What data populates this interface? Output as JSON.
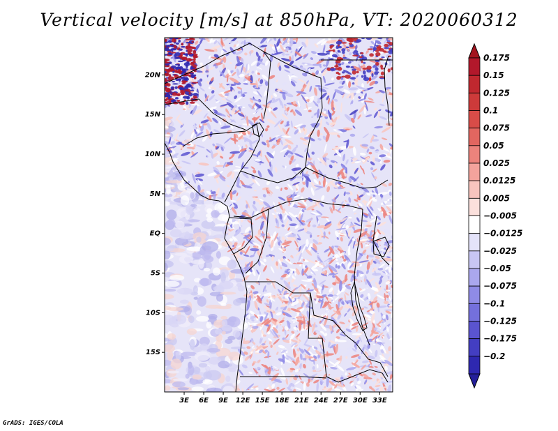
{
  "title": "Vertical velocity [m/s] at 850hPa, VT: 2020060312",
  "credit": "GrADS: IGES/COLA",
  "map": {
    "lon_range": [
      0,
      35
    ],
    "lat_range": [
      -20,
      24.7
    ],
    "lon_ticks": [
      {
        "value": 3,
        "label": "3E"
      },
      {
        "value": 6,
        "label": "6E"
      },
      {
        "value": 9,
        "label": "9E"
      },
      {
        "value": 12,
        "label": "12E"
      },
      {
        "value": 15,
        "label": "15E"
      },
      {
        "value": 18,
        "label": "18E"
      },
      {
        "value": 21,
        "label": "21E"
      },
      {
        "value": 24,
        "label": "24E"
      },
      {
        "value": 27,
        "label": "27E"
      },
      {
        "value": 30,
        "label": "30E"
      },
      {
        "value": 33,
        "label": "33E"
      }
    ],
    "lat_ticks": [
      {
        "value": 20,
        "label": "20N"
      },
      {
        "value": 15,
        "label": "15N"
      },
      {
        "value": 10,
        "label": "10N"
      },
      {
        "value": 5,
        "label": "5N"
      },
      {
        "value": 0,
        "label": "EQ"
      },
      {
        "value": -5,
        "label": "5S"
      },
      {
        "value": -10,
        "label": "10S"
      },
      {
        "value": -15,
        "label": "15S"
      }
    ]
  },
  "colorbar": {
    "units": "m/s",
    "levels": [
      {
        "label": "0.175",
        "color": "#b2182b"
      },
      {
        "label": "0.15",
        "color": "#c0282f"
      },
      {
        "label": "0.125",
        "color": "#cd3a3a"
      },
      {
        "label": "0.1",
        "color": "#d84c48"
      },
      {
        "label": "0.075",
        "color": "#e26660"
      },
      {
        "label": "0.05",
        "color": "#ec837c"
      },
      {
        "label": "0.025",
        "color": "#f3a39c"
      },
      {
        "label": "0.0125",
        "color": "#f8c4be"
      },
      {
        "label": "0.005",
        "color": "#fbe0dc"
      },
      {
        "label": "−0.005",
        "color": "#ffffff"
      },
      {
        "label": "−0.0125",
        "color": "#e4e3fa"
      },
      {
        "label": "−0.025",
        "color": "#c8c6f4"
      },
      {
        "label": "−0.05",
        "color": "#aaa7ee"
      },
      {
        "label": "−0.075",
        "color": "#8f8be6"
      },
      {
        "label": "−0.1",
        "color": "#7470dc"
      },
      {
        "label": "−0.125",
        "color": "#5a54d0"
      },
      {
        "label": "−0.175",
        "color": "#433ec2"
      },
      {
        "label": "−0.2",
        "color": "#2e28b0"
      }
    ],
    "end_colors": {
      "top": "#a3141f",
      "bottom": "#241f9a"
    }
  }
}
